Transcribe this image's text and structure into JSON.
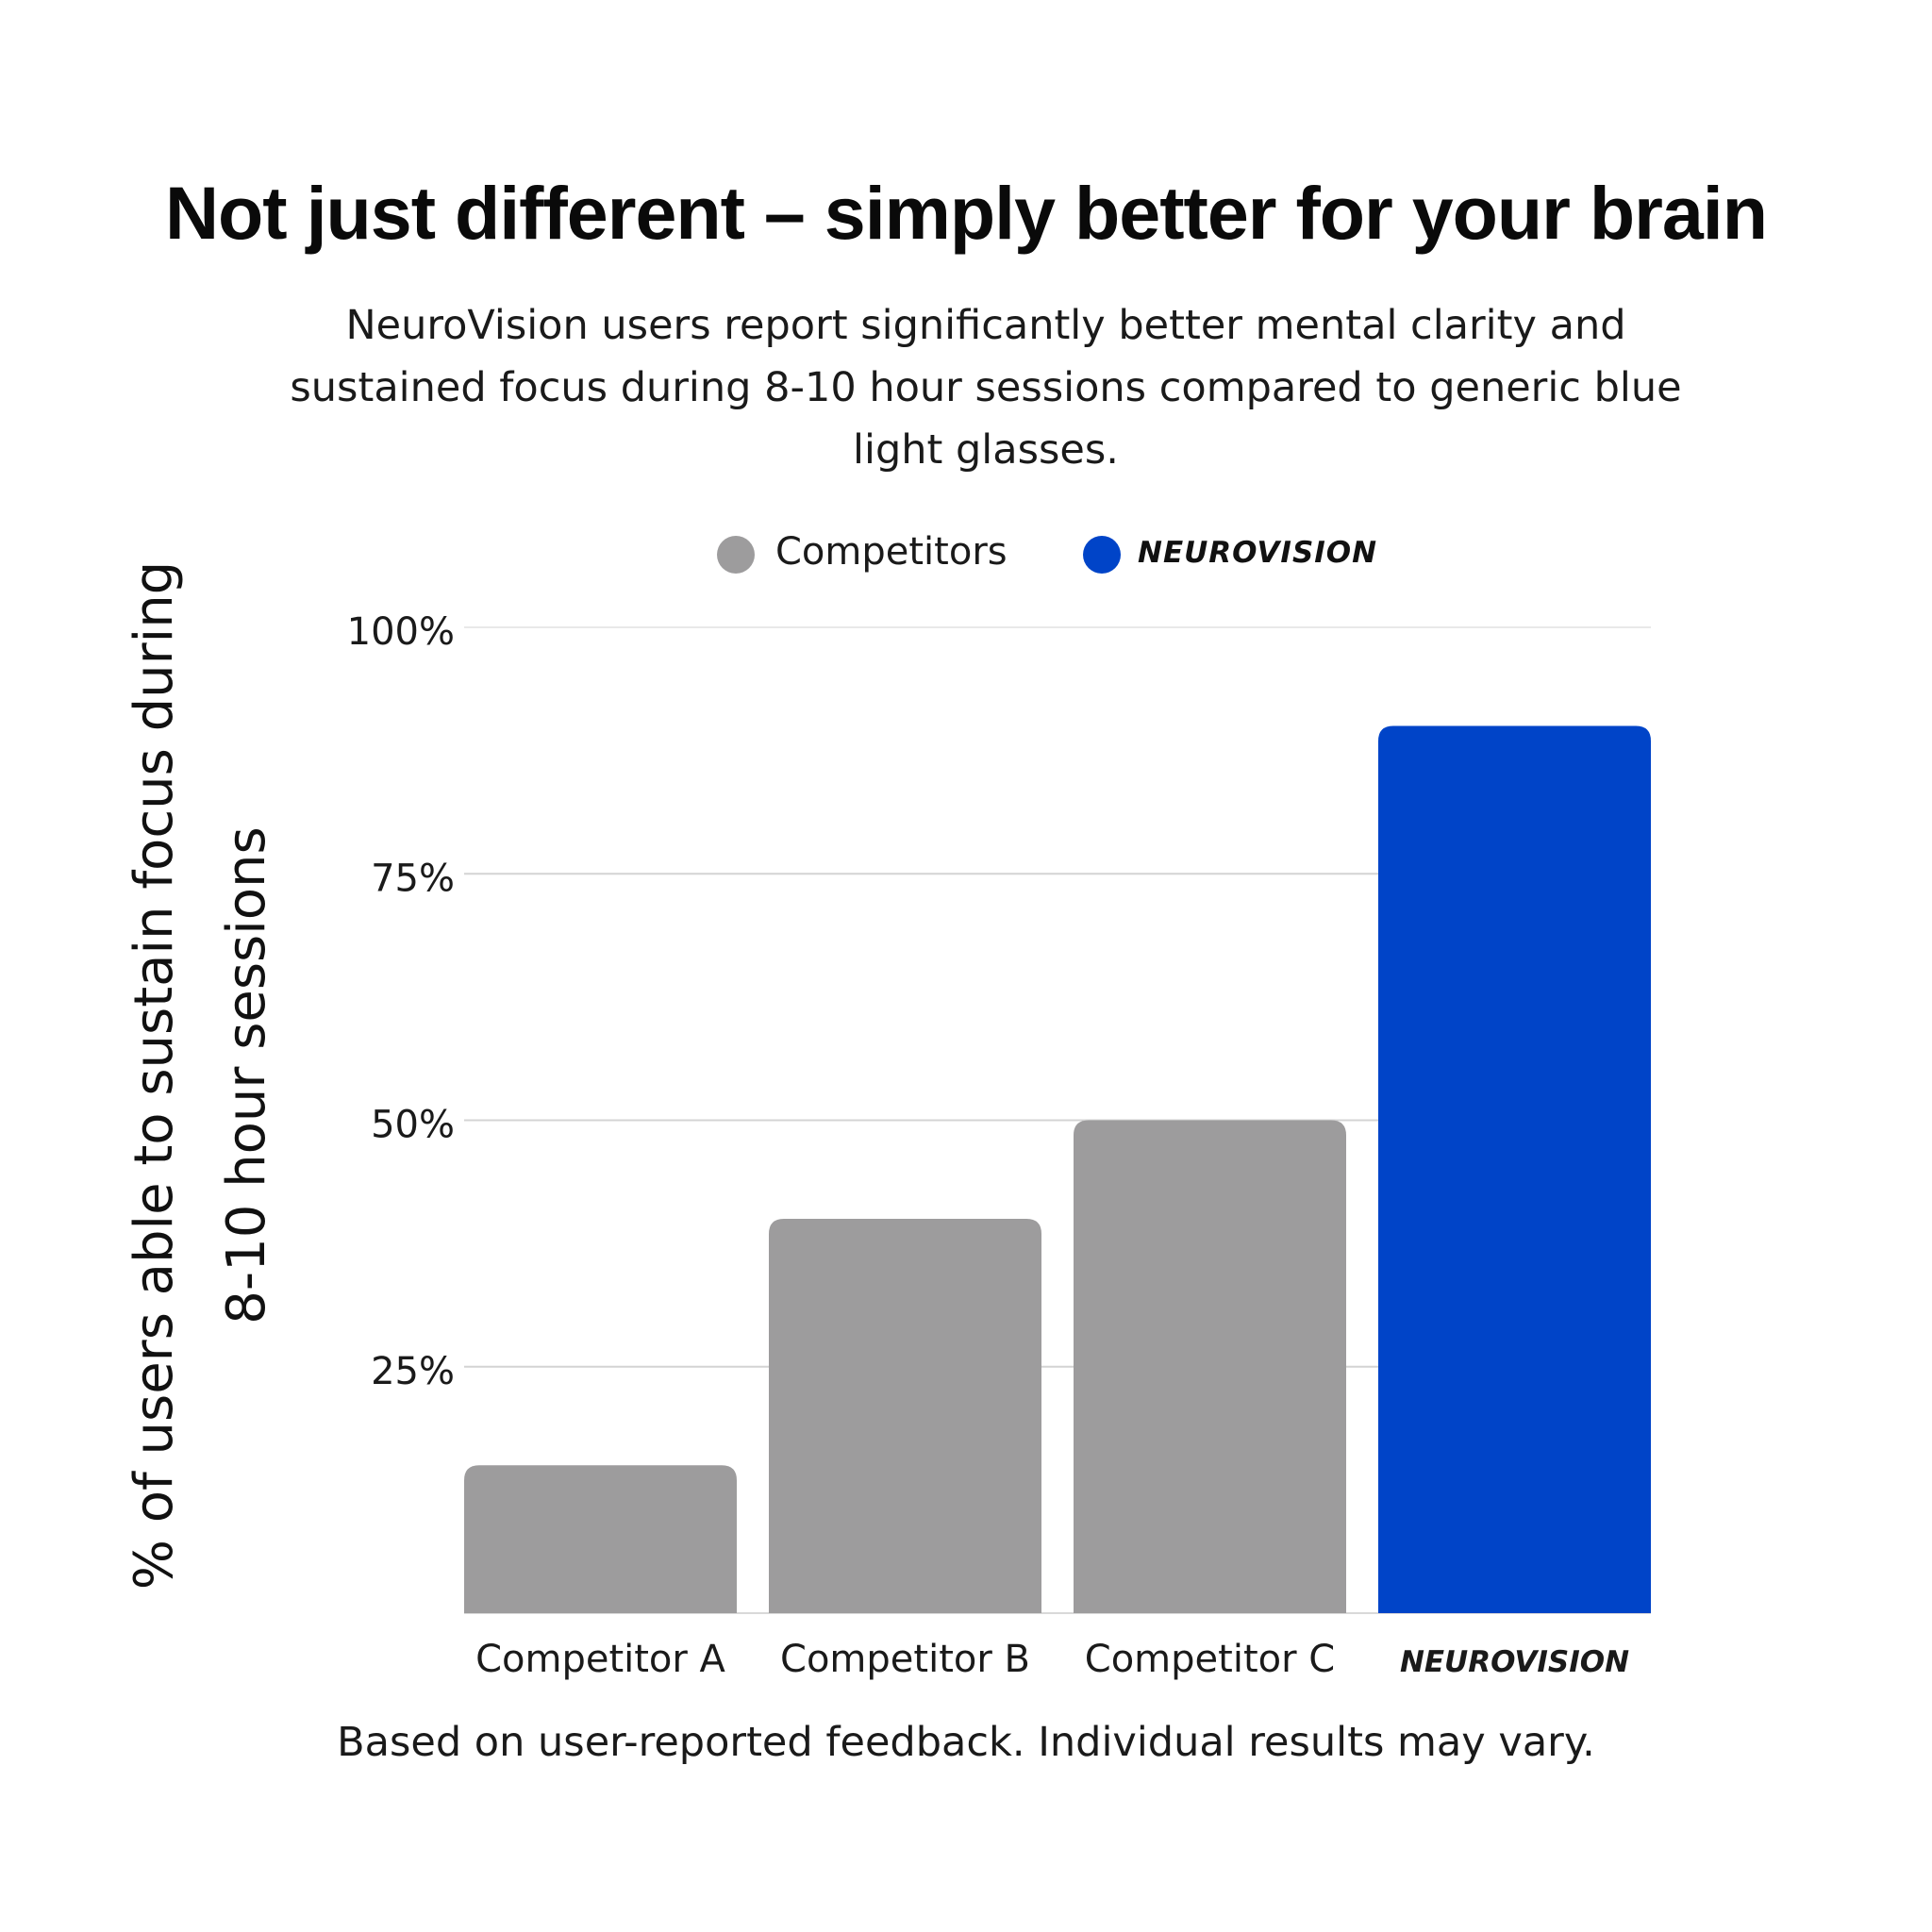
{
  "title": "Not just different – simply better for your brain",
  "subtitle": "NeuroVision users report significantly better mental clarity and sustained focus during 8-10 hour sessions compared to generic blue light glasses.",
  "footnote": "Based on user-reported feedback. Individual results may vary.",
  "brand_logo_text": "NEUROVISION",
  "colors": {
    "competitors": "#9d9c9d",
    "neurovision": "#0044c8",
    "gridline": "#d4d4d4"
  },
  "legend": [
    {
      "label": "Competitors",
      "color": "#9d9c9d"
    },
    {
      "label": "NEUROVISION",
      "color": "#0044c8",
      "is_logo": true
    }
  ],
  "chart_data": {
    "type": "bar",
    "categories": [
      "Competitor A",
      "Competitor B",
      "Competitor C",
      "NEUROVISION"
    ],
    "series": [
      {
        "name": "Competitors",
        "values": [
          15,
          40,
          50,
          null
        ]
      },
      {
        "name": "NEUROVISION",
        "values": [
          null,
          null,
          null,
          90
        ]
      }
    ],
    "values": [
      15,
      40,
      50,
      90
    ],
    "bar_colors": [
      "#9d9c9d",
      "#9d9c9d",
      "#9d9c9d",
      "#0044c8"
    ],
    "ylabel": "% of users able to sustain focus during 8-10 hour sessions",
    "ylabel_lines": [
      "% of users able to sustain focus during",
      "8-10 hour sessions"
    ],
    "xlabel": "",
    "ylim": [
      0,
      100
    ],
    "yticks": [
      25,
      50,
      75,
      100
    ],
    "ytick_labels": [
      "25%",
      "50%",
      "75%",
      "100%"
    ],
    "grid": true,
    "legend_position": "top-center"
  }
}
